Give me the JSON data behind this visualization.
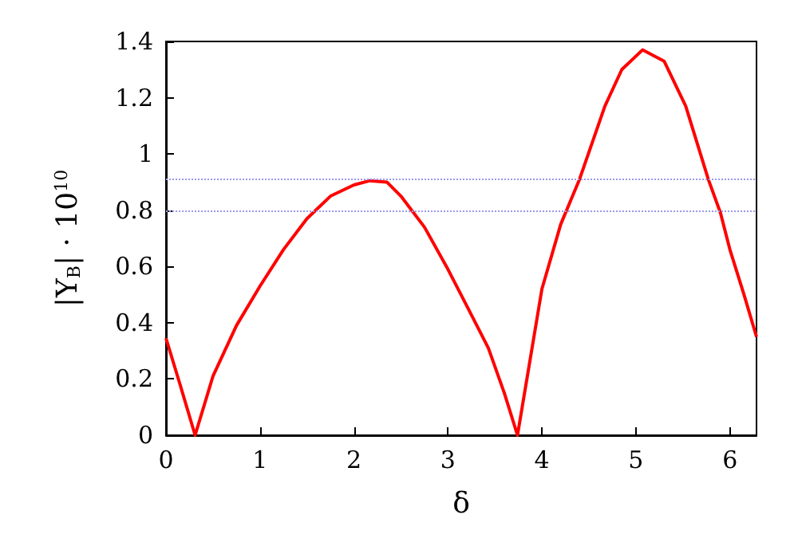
{
  "chart_data": {
    "type": "line",
    "xlabel": "δ",
    "ylabel": "|Y$_{B}$| · 10$^{10}$",
    "xlim": [
      0,
      6.283
    ],
    "xticks": [
      0,
      1,
      2,
      3,
      4,
      5,
      6
    ],
    "ylim": [
      0,
      1.4
    ],
    "yticks": [
      0,
      0.2,
      0.4,
      0.6,
      0.8,
      1,
      1.2,
      1.4
    ],
    "series": [
      {
        "color": "#ff0000",
        "x": [
          0,
          0.15,
          0.31,
          0.5,
          0.75,
          1,
          1.25,
          1.5,
          1.75,
          2,
          2.17,
          2.35,
          2.5,
          2.75,
          3,
          3.2,
          3.43,
          3.6,
          3.74,
          3.85,
          4,
          4.2,
          4.4,
          4.67,
          4.85,
          5.07,
          5.3,
          5.53,
          5.77,
          5.9,
          6,
          6.15,
          6.283
        ],
        "values": [
          0.345,
          0.18,
          0,
          0.21,
          0.39,
          0.53,
          0.66,
          0.77,
          0.85,
          0.89,
          0.905,
          0.9,
          0.85,
          0.74,
          0.59,
          0.46,
          0.31,
          0.15,
          0,
          0.22,
          0.52,
          0.75,
          0.91,
          1.17,
          1.3,
          1.37,
          1.33,
          1.17,
          0.91,
          0.79,
          0.66,
          0.5,
          0.35
        ]
      }
    ],
    "ref_lines": [
      {
        "axis": "y",
        "value": 0.91,
        "color": "#9999ee",
        "line_style": "dotted"
      },
      {
        "axis": "y",
        "value": 0.8,
        "color": "#9999ee",
        "line_style": "dotted"
      }
    ],
    "grid": false,
    "marker": "none",
    "line_style": "solid"
  }
}
